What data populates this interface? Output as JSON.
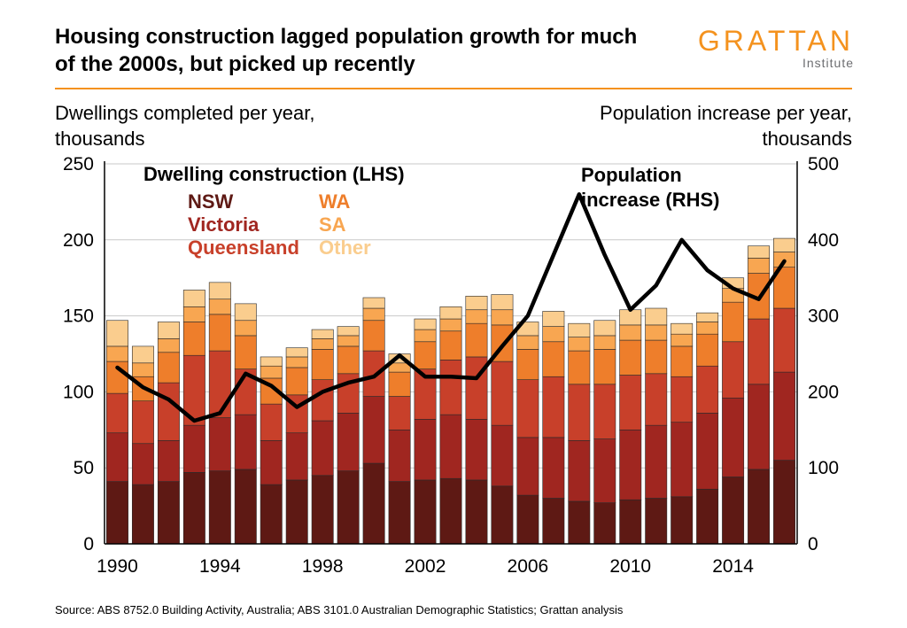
{
  "header": {
    "title_line1": "Housing construction lagged population growth for much",
    "title_line2": "of the 2000s, but picked up recently",
    "logo_text": "GRATTAN",
    "logo_subtext": "Institute"
  },
  "captions": {
    "left_line1": "Dwellings completed per year,",
    "left_line2": "thousands",
    "right_line1": "Population increase per year,",
    "right_line2": "thousands"
  },
  "legend": {
    "lhs_title": "Dwelling construction (LHS)",
    "items": [
      {
        "label": "NSW",
        "color": "#5E1914"
      },
      {
        "label": "Victoria",
        "color": "#A02620"
      },
      {
        "label": "Queensland",
        "color": "#C8402A"
      },
      {
        "label": "WA",
        "color": "#EE7E2B"
      },
      {
        "label": "SA",
        "color": "#F8A651"
      },
      {
        "label": "Other",
        "color": "#FACD8E"
      }
    ],
    "rhs_line1": "Population",
    "rhs_line2": "increase (RHS)"
  },
  "source": "Source: ABS 8752.0 Building Activity, Australia; ABS 3101.0 Australian Demographic Statistics; Grattan analysis",
  "colors": {
    "accent_orange": "#F4921E",
    "grid_gray": "#C9C9C9",
    "axis_black": "#000000"
  },
  "chart_data": {
    "type": "bar",
    "stacked": true,
    "overlay_line": true,
    "grid": true,
    "legend_position": "inside-top",
    "x": [
      1990,
      1991,
      1992,
      1993,
      1994,
      1995,
      1996,
      1997,
      1998,
      1999,
      2000,
      2001,
      2002,
      2003,
      2004,
      2005,
      2006,
      2007,
      2008,
      2009,
      2010,
      2011,
      2012,
      2013,
      2014,
      2015,
      2016
    ],
    "x_tick_labels": [
      1990,
      1994,
      1998,
      2002,
      2006,
      2010,
      2014
    ],
    "series": [
      {
        "name": "NSW",
        "color": "#5E1914",
        "values": [
          41,
          39,
          41,
          47,
          48,
          49,
          39,
          42,
          45,
          48,
          53,
          41,
          42,
          43,
          42,
          38,
          32,
          30,
          28,
          27,
          29,
          30,
          31,
          36,
          44,
          49,
          55
        ]
      },
      {
        "name": "Victoria",
        "color": "#A02620",
        "values": [
          32,
          27,
          27,
          31,
          35,
          36,
          29,
          31,
          36,
          38,
          44,
          34,
          40,
          42,
          40,
          40,
          38,
          40,
          40,
          42,
          46,
          48,
          49,
          50,
          52,
          56,
          58
        ]
      },
      {
        "name": "Queensland",
        "color": "#C8402A",
        "values": [
          26,
          28,
          38,
          46,
          44,
          30,
          24,
          25,
          27,
          26,
          30,
          22,
          33,
          36,
          41,
          42,
          38,
          40,
          37,
          36,
          36,
          34,
          30,
          31,
          37,
          43,
          42
        ]
      },
      {
        "name": "WA",
        "color": "#EE7E2B",
        "values": [
          21,
          16,
          20,
          22,
          24,
          22,
          17,
          18,
          20,
          18,
          20,
          16,
          18,
          19,
          22,
          24,
          20,
          23,
          22,
          23,
          23,
          22,
          20,
          21,
          26,
          30,
          27
        ]
      },
      {
        "name": "SA",
        "color": "#F8A651",
        "values": [
          10,
          9,
          9,
          10,
          10,
          10,
          8,
          7,
          7,
          7,
          8,
          6,
          8,
          8,
          9,
          10,
          9,
          10,
          9,
          9,
          10,
          10,
          8,
          8,
          9,
          10,
          10
        ]
      },
      {
        "name": "Other",
        "color": "#FACD8E",
        "values": [
          17,
          11,
          11,
          11,
          11,
          11,
          6,
          6,
          6,
          6,
          7,
          6,
          7,
          8,
          9,
          10,
          9,
          10,
          9,
          10,
          10,
          11,
          7,
          6,
          7,
          8,
          9
        ]
      }
    ],
    "line_series": {
      "name": "Population increase (RHS)",
      "color": "#000000",
      "axis": "right",
      "values": [
        232,
        206,
        190,
        162,
        172,
        224,
        208,
        180,
        200,
        212,
        220,
        248,
        220,
        220,
        218,
        260,
        300,
        380,
        460,
        380,
        308,
        340,
        400,
        360,
        336,
        322,
        372
      ]
    },
    "left_axis": {
      "label": "Dwellings completed per year, thousands",
      "min": 0,
      "max": 250,
      "ticks": [
        0,
        50,
        100,
        150,
        200,
        250
      ]
    },
    "right_axis": {
      "label": "Population increase per year, thousands",
      "min": 0,
      "max": 500,
      "ticks": [
        0,
        100,
        200,
        300,
        400,
        500
      ]
    }
  }
}
